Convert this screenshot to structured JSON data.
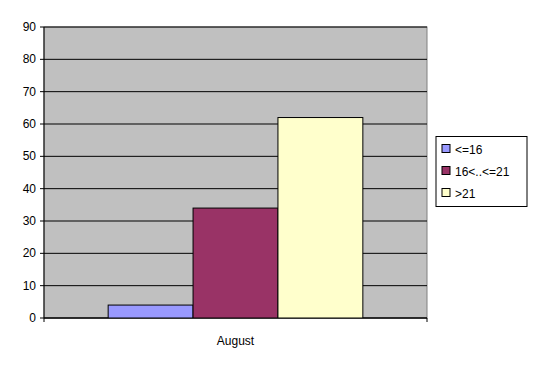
{
  "chart_data": {
    "type": "bar",
    "categories": [
      "August"
    ],
    "series": [
      {
        "name": "<=16",
        "color": "#9999ff",
        "values": [
          4
        ]
      },
      {
        "name": "16<..<=21",
        "color": "#993366",
        "values": [
          34
        ]
      },
      {
        "name": ">21",
        "color": "#ffffcc",
        "values": [
          62
        ]
      }
    ],
    "ylim": [
      0,
      90
    ],
    "yticks": [
      0,
      10,
      20,
      30,
      40,
      50,
      60,
      70,
      80,
      90
    ],
    "grid": true,
    "legend": "right"
  }
}
